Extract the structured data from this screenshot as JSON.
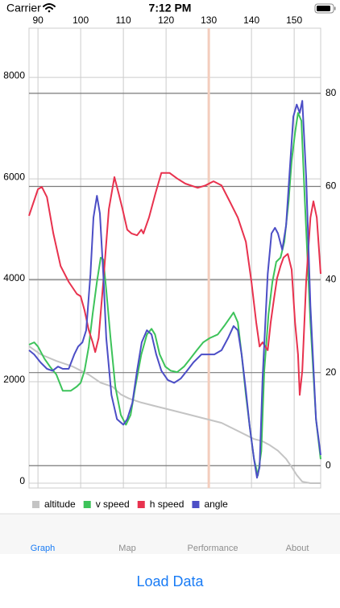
{
  "status_bar": {
    "carrier": "Carrier",
    "time": "7:12 PM"
  },
  "chart_data": {
    "type": "line",
    "xlim": [
      87.9,
      156.2
    ],
    "xticks": [
      90,
      100,
      110,
      120,
      130,
      140,
      150
    ],
    "ylim": [
      -95,
      8970
    ],
    "yticks": [
      0,
      2000,
      4000,
      6000,
      8000
    ],
    "y2lim": [
      -4.8,
      94
    ],
    "y2ticks": [
      0,
      20,
      40,
      60,
      80
    ],
    "grid": true,
    "highlight_x": 130,
    "legend": "bottom-left",
    "series": [
      {
        "name": "altitude",
        "color": "#c4c4c4",
        "x": [
          87.9,
          90.6,
          94.3,
          98.1,
          101.9,
          104.7,
          107.5,
          109.4,
          111.3,
          114.2,
          117.9,
          121.7,
          125.5,
          129.2,
          133.0,
          136.8,
          140.6,
          142.5,
          144.3,
          146.2,
          148.1,
          149.4,
          150.6,
          151.9,
          153.8,
          156.2
        ],
        "values": [
          2700,
          2540,
          2410,
          2300,
          2140,
          1980,
          1900,
          1750,
          1670,
          1590,
          1510,
          1430,
          1350,
          1270,
          1190,
          1030,
          870,
          830,
          750,
          640,
          480,
          320,
          160,
          30,
          0,
          0
        ]
      },
      {
        "name": "v speed",
        "color": "#3dc35a",
        "axis": "y2",
        "x": [
          87.9,
          89.1,
          90,
          91.5,
          92.8,
          94.3,
          95.8,
          97.7,
          99.1,
          100,
          100.9,
          101.9,
          102.8,
          103.8,
          104.7,
          105.3,
          106.0,
          107.0,
          108.1,
          109.4,
          110.6,
          111.7,
          112.8,
          114.2,
          115.5,
          116.6,
          117.4,
          118.5,
          119.8,
          121.1,
          122.6,
          124.2,
          125.7,
          127.2,
          128.7,
          130.2,
          132.1,
          133.6,
          134.9,
          135.8,
          136.8,
          137.7,
          138.7,
          139.6,
          140.6,
          141.5,
          142.3,
          143.0,
          144.0,
          144.9,
          145.8,
          146.8,
          147.7,
          148.7,
          149.4,
          150.2,
          150.9,
          151.7,
          152.5,
          153.8,
          155.1,
          156.2
        ],
        "values": [
          26.0,
          26.5,
          25.6,
          23.0,
          21.3,
          19.6,
          16.1,
          16.1,
          17.0,
          17.8,
          20.4,
          25.6,
          32.6,
          39.5,
          44.7,
          44.3,
          37.7,
          27.4,
          17.0,
          10.9,
          8.8,
          10.9,
          17.0,
          23.9,
          28.2,
          29.4,
          28.2,
          23.9,
          21.3,
          20.4,
          20.1,
          21.3,
          23.0,
          24.8,
          26.5,
          27.4,
          28.2,
          30.0,
          31.7,
          32.9,
          30.8,
          23.9,
          15.2,
          8.3,
          1.4,
          -2.1,
          3.1,
          20.4,
          32.6,
          39.5,
          43.8,
          44.7,
          48.1,
          56.8,
          65.5,
          71.5,
          75.8,
          74.1,
          56.8,
          30.8,
          10.0,
          1.4
        ]
      },
      {
        "name": "h speed",
        "color": "#e8324e",
        "axis": "y2",
        "x": [
          87.9,
          90,
          90.9,
          92.1,
          93.6,
          95.3,
          97.2,
          99.1,
          100,
          100.9,
          101.9,
          102.8,
          103.4,
          104.2,
          105.3,
          106.6,
          107.9,
          108.9,
          109.8,
          110.9,
          111.9,
          113.2,
          114.2,
          114.7,
          116.0,
          117.5,
          118.9,
          120.8,
          122.6,
          124.5,
          127.4,
          129.2,
          131.1,
          133.0,
          134.9,
          136.8,
          138.7,
          140.0,
          141.1,
          141.9,
          142.6,
          143.8,
          144.5,
          145.3,
          146.0,
          146.8,
          147.5,
          148.5,
          149.4,
          150.2,
          150.9,
          151.3,
          151.9,
          152.8,
          153.8,
          154.5,
          155.3,
          156.2
        ],
        "values": [
          53.7,
          59.4,
          59.9,
          57.7,
          49.9,
          42.9,
          39.5,
          36.9,
          36.4,
          33.4,
          29.1,
          26.5,
          24.4,
          27.4,
          39.5,
          55.1,
          62.0,
          58.5,
          55.1,
          50.7,
          49.9,
          49.5,
          50.7,
          49.9,
          53.3,
          58.5,
          62.9,
          62.9,
          61.7,
          60.6,
          59.7,
          60.2,
          61.1,
          60.2,
          56.8,
          53.3,
          48.1,
          39.5,
          30.8,
          25.6,
          26.5,
          24.8,
          30.8,
          36.0,
          40.3,
          42.9,
          44.7,
          45.5,
          42.1,
          30.8,
          23.9,
          15.2,
          20.4,
          39.5,
          53.3,
          56.8,
          53.3,
          41.2
        ]
      },
      {
        "name": "angle",
        "color": "#4c4ec6",
        "axis": "y2",
        "x": [
          87.9,
          89.1,
          90.6,
          92.1,
          93.4,
          94.7,
          95.8,
          97.2,
          98.5,
          99.4,
          100.4,
          101.3,
          102.3,
          103.0,
          103.8,
          104.5,
          105.3,
          106.0,
          107.2,
          108.5,
          110.0,
          110.9,
          112.1,
          113.2,
          114.3,
          115.5,
          116.6,
          117.7,
          118.9,
          120.4,
          121.9,
          123.4,
          124.9,
          126.4,
          128.3,
          129.8,
          131.3,
          133.0,
          134.5,
          135.8,
          136.8,
          137.7,
          138.7,
          139.6,
          140.6,
          141.3,
          141.9,
          142.6,
          143.8,
          144.7,
          145.5,
          146.2,
          147.2,
          148.1,
          149.1,
          149.8,
          150.6,
          151.3,
          151.9,
          152.8,
          153.8,
          155.1,
          156.2
        ],
        "values": [
          24.8,
          23.9,
          22.2,
          20.8,
          20.4,
          21.3,
          20.8,
          20.8,
          23.9,
          25.6,
          26.5,
          29.1,
          41.2,
          53.3,
          58.0,
          54.2,
          41.2,
          27.4,
          15.2,
          10.0,
          8.8,
          10.0,
          13.5,
          20.4,
          26.5,
          29.1,
          28.2,
          23.9,
          20.4,
          18.4,
          17.8,
          18.7,
          20.4,
          22.2,
          23.9,
          23.9,
          23.9,
          24.8,
          27.4,
          30.0,
          29.1,
          23.9,
          16.1,
          8.3,
          1.4,
          -2.6,
          -0.3,
          18.7,
          41.2,
          49.9,
          51.1,
          49.9,
          46.4,
          51.6,
          65.5,
          75.0,
          77.6,
          75.8,
          78.4,
          62.0,
          34.3,
          10.0,
          2.3
        ]
      }
    ]
  },
  "tab_bar": {
    "selected": 0,
    "tabs": [
      "Graph",
      "Map",
      "Performance",
      "About"
    ]
  },
  "button": "Load Data"
}
